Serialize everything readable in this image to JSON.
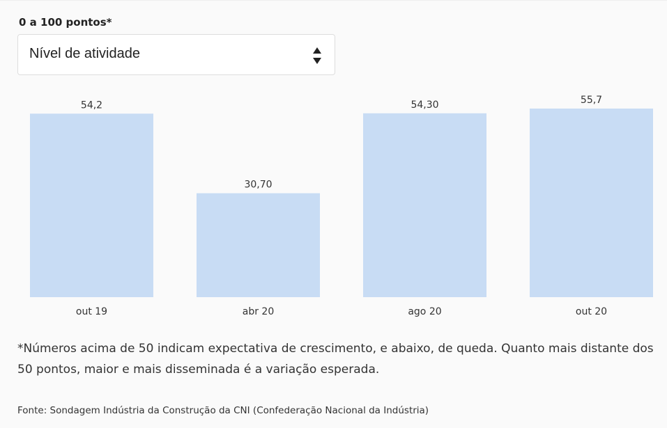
{
  "subtitle": "0 a 100 pontos*",
  "selector": {
    "selected": "Nível de atividade"
  },
  "chart_data": {
    "type": "bar",
    "categories": [
      "out 19",
      "abr 20",
      "ago 20",
      "out 20"
    ],
    "values": [
      54.2,
      30.7,
      54.3,
      55.7
    ],
    "value_labels": [
      "54,2",
      "30,70",
      "54,30",
      "55,7"
    ],
    "color": "#c8dcf4"
  },
  "footnote": "*Números acima de 50 indicam expectativa de crescimento, e abaixo, de queda. Quanto mais distante dos 50 pontos, maior e mais disseminada é a variação esperada.",
  "source": "Fonte: Sondagem Indústria da Construção da CNI (Confederação Nacional da Indústria)"
}
